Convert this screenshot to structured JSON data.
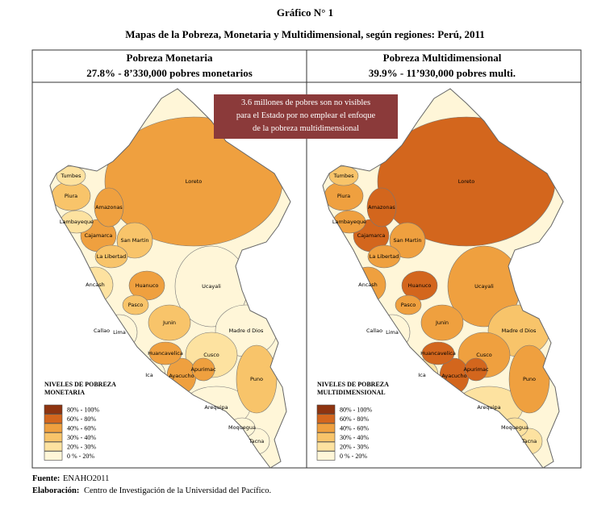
{
  "title": "Gráfico N° 1",
  "subtitle": "Mapas de la Pobreza, Monetaria y Multidimensional, según regiones: Perú, 2011",
  "panels": [
    {
      "title": "Pobreza Monetaria",
      "summary": "27.8% - 8’330,000 pobres monetarios",
      "legend_title": [
        "NIVELES DE POBREZA",
        "MONETARIA"
      ]
    },
    {
      "title": "Pobreza Multidimensional",
      "summary": "39.9% - 11’930,000 pobres multi.",
      "legend_title": [
        "NIVELES DE POBREZA",
        "MULTIDIMENSIONAL"
      ]
    }
  ],
  "legend_levels": [
    "80% - 100%",
    "60% - 80%",
    "40% - 60%",
    "30% - 40%",
    "20% - 30%",
    "0 % - 20%"
  ],
  "callout": [
    "3.6 millones de pobres son no visibles",
    "para el Estado por no emplear el enfoque",
    "de la pobreza multidimensional"
  ],
  "regions": [
    "Tumbes",
    "Piura",
    "Lambayeque",
    "Cajamarca",
    "Amazonas",
    "Loreto",
    "San Martin",
    "La Libertad",
    "Ancash",
    "Huanuco",
    "Ucayali",
    "Pasco",
    "Lima",
    "Callao",
    "Junin",
    "Madre d Dios",
    "Huancavelica",
    "Cusco",
    "Ica",
    "Ayacucho",
    "Apurimac",
    "Puno",
    "Arequipa",
    "Moquegua",
    "Tacna"
  ],
  "source": {
    "label": "Fuente:",
    "text": "ENAHO2011"
  },
  "prepared_by": {
    "label": "Elaboración:",
    "text": "Centro de Investigación de la Universidad del Pacífico."
  }
}
